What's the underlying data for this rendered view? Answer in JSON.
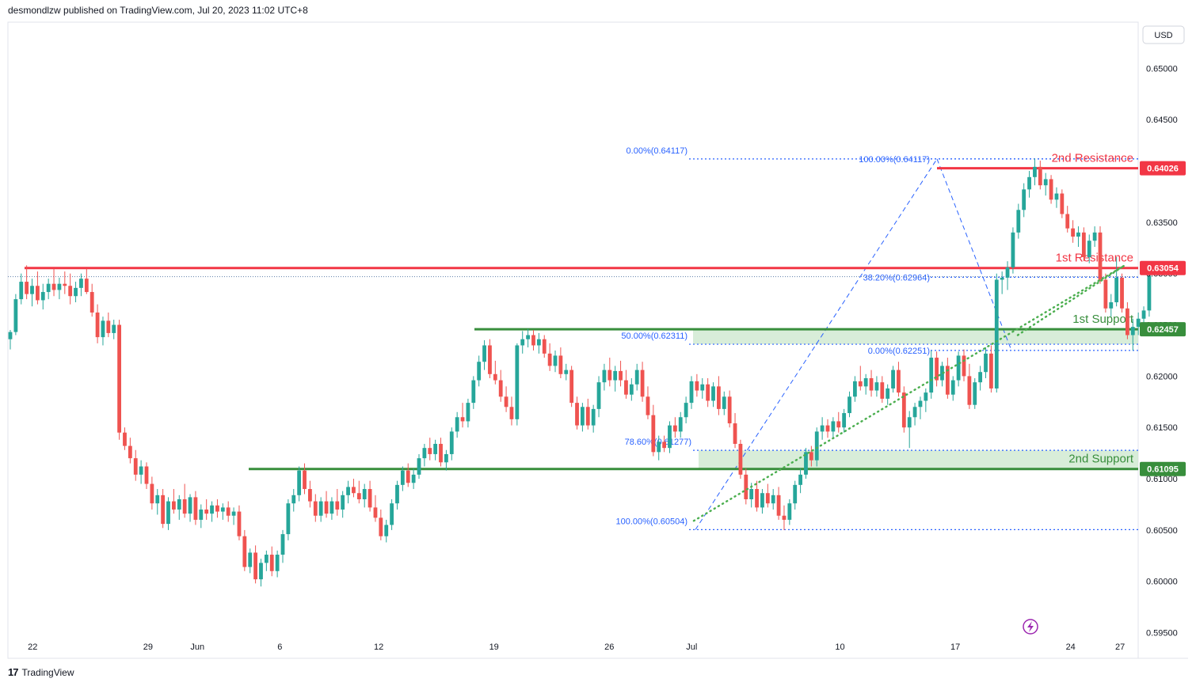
{
  "header": {
    "publisher_line": "desmondlzw published on TradingView.com, Jul 20, 2023 11:02 UTC+8"
  },
  "footer": {
    "brand": "TradingView"
  },
  "currency_badge": "USD",
  "colors": {
    "bull": "#26a69a",
    "bear": "#ef5350",
    "resistance": "#f23645",
    "support": "#388e3c",
    "fib": "#2962ff",
    "trend": "#4caf50",
    "zone": "#c8e6c9"
  },
  "icons": {
    "replay": "lightning-bolt-icon"
  },
  "chart_data": {
    "type": "candlestick",
    "y_axis": {
      "min": 0.5925,
      "max": 0.6545,
      "ticks": [
        "0.65000",
        "0.64500",
        "0.64000",
        "0.63500",
        "0.63000",
        "0.62500",
        "0.62000",
        "0.61500",
        "0.61000",
        "0.60500",
        "0.60000",
        "0.59500"
      ]
    },
    "x_axis": {
      "ticks": [
        {
          "label": "22",
          "day": 0
        },
        {
          "label": "29",
          "day": 7
        },
        {
          "label": "Jun",
          "day": 10
        },
        {
          "label": "6",
          "day": 15
        },
        {
          "label": "12",
          "day": 21
        },
        {
          "label": "19",
          "day": 28
        },
        {
          "label": "26",
          "day": 35
        },
        {
          "label": "Jul",
          "day": 40
        },
        {
          "label": "10",
          "day": 49
        },
        {
          "label": "17",
          "day": 56
        },
        {
          "label": "24",
          "day": 63
        },
        {
          "label": "27",
          "day": 66
        }
      ]
    },
    "levels": [
      {
        "name": "2nd Resistance",
        "value": 0.64026,
        "price": "0.64026",
        "kind": "resistance"
      },
      {
        "name": "1st Resistance",
        "value": 0.63054,
        "price": "0.63054",
        "kind": "resistance"
      },
      {
        "name": "1st Support",
        "value": 0.62457,
        "price": "0.62457",
        "kind": "support"
      },
      {
        "name": "2nd Support",
        "value": 0.61095,
        "price": "0.61095",
        "kind": "support"
      }
    ],
    "fib_left": [
      {
        "label": "0.00%(0.64117)",
        "value": 0.64117
      },
      {
        "label": "50.00%(0.62311)",
        "value": 0.62311
      },
      {
        "label": "78.60%(0.61277)",
        "value": 0.61277
      },
      {
        "label": "100.00%(0.60504)",
        "value": 0.60504
      }
    ],
    "fib_right": [
      {
        "label": "100.00%(0.64117)",
        "value": 0.64117
      },
      {
        "label": "38.20%(0.62964)",
        "value": 0.62964
      },
      {
        "label": "0.00%(0.62251)",
        "value": 0.62251
      }
    ],
    "candles": [
      [
        0.6236,
        0.6245,
        0.6226,
        0.6243
      ],
      [
        0.6243,
        0.628,
        0.624,
        0.6275
      ],
      [
        0.6275,
        0.63,
        0.627,
        0.6292
      ],
      [
        0.6292,
        0.6308,
        0.6275,
        0.628
      ],
      [
        0.628,
        0.6295,
        0.6268,
        0.6288
      ],
      [
        0.6288,
        0.6302,
        0.627,
        0.6274
      ],
      [
        0.6274,
        0.629,
        0.6265,
        0.6282
      ],
      [
        0.6282,
        0.6295,
        0.6275,
        0.629
      ],
      [
        0.629,
        0.6305,
        0.6278,
        0.6284
      ],
      [
        0.6284,
        0.6296,
        0.6275,
        0.629
      ],
      [
        0.629,
        0.6302,
        0.628,
        0.6288
      ],
      [
        0.6288,
        0.63,
        0.627,
        0.6278
      ],
      [
        0.6278,
        0.6292,
        0.6272,
        0.6286
      ],
      [
        0.6286,
        0.63,
        0.6278,
        0.6295
      ],
      [
        0.6295,
        0.6305,
        0.628,
        0.6282
      ],
      [
        0.6282,
        0.629,
        0.6258,
        0.6262
      ],
      [
        0.6262,
        0.627,
        0.6232,
        0.6238
      ],
      [
        0.6238,
        0.6258,
        0.623,
        0.6254
      ],
      [
        0.6254,
        0.6262,
        0.6238,
        0.6242
      ],
      [
        0.6242,
        0.6255,
        0.6236,
        0.625
      ],
      [
        0.625,
        0.6255,
        0.6138,
        0.6145
      ],
      [
        0.6145,
        0.615,
        0.6128,
        0.6132
      ],
      [
        0.6132,
        0.614,
        0.6115,
        0.612
      ],
      [
        0.612,
        0.6128,
        0.6098,
        0.6104
      ],
      [
        0.6104,
        0.6118,
        0.6095,
        0.6112
      ],
      [
        0.6112,
        0.6116,
        0.609,
        0.6095
      ],
      [
        0.6095,
        0.6102,
        0.607,
        0.6076
      ],
      [
        0.6076,
        0.609,
        0.6065,
        0.6084
      ],
      [
        0.6084,
        0.609,
        0.6052,
        0.6056
      ],
      [
        0.6056,
        0.6082,
        0.605,
        0.6078
      ],
      [
        0.6078,
        0.609,
        0.6066,
        0.607
      ],
      [
        0.607,
        0.6084,
        0.606,
        0.608
      ],
      [
        0.608,
        0.6095,
        0.6062,
        0.6066
      ],
      [
        0.6066,
        0.6085,
        0.6058,
        0.6082
      ],
      [
        0.6082,
        0.6088,
        0.6055,
        0.606
      ],
      [
        0.606,
        0.6075,
        0.6052,
        0.607
      ],
      [
        0.607,
        0.608,
        0.606,
        0.6066
      ],
      [
        0.6066,
        0.6078,
        0.6058,
        0.6074
      ],
      [
        0.6074,
        0.608,
        0.6062,
        0.6068
      ],
      [
        0.6068,
        0.6076,
        0.606,
        0.6072
      ],
      [
        0.6072,
        0.6078,
        0.6058,
        0.6064
      ],
      [
        0.6064,
        0.6072,
        0.6055,
        0.6068
      ],
      [
        0.6068,
        0.6074,
        0.604,
        0.6044
      ],
      [
        0.6044,
        0.605,
        0.601,
        0.6014
      ],
      [
        0.6014,
        0.6032,
        0.6008,
        0.6028
      ],
      [
        0.6028,
        0.6035,
        0.5998,
        0.6002
      ],
      [
        0.6002,
        0.6022,
        0.5995,
        0.6018
      ],
      [
        0.6018,
        0.603,
        0.601,
        0.6026
      ],
      [
        0.6026,
        0.6034,
        0.6005,
        0.601
      ],
      [
        0.601,
        0.603,
        0.6004,
        0.6026
      ],
      [
        0.6026,
        0.605,
        0.6018,
        0.6046
      ],
      [
        0.6046,
        0.608,
        0.604,
        0.6076
      ],
      [
        0.6076,
        0.609,
        0.6068,
        0.6084
      ],
      [
        0.6084,
        0.6112,
        0.6078,
        0.6108
      ],
      [
        0.6108,
        0.6115,
        0.6085,
        0.609
      ],
      [
        0.609,
        0.6098,
        0.6072,
        0.6078
      ],
      [
        0.6078,
        0.6085,
        0.6058,
        0.6064
      ],
      [
        0.6064,
        0.6082,
        0.6058,
        0.6078
      ],
      [
        0.6078,
        0.6088,
        0.6062,
        0.6066
      ],
      [
        0.6066,
        0.6082,
        0.606,
        0.6078
      ],
      [
        0.6078,
        0.609,
        0.6064,
        0.607
      ],
      [
        0.607,
        0.6088,
        0.6062,
        0.6084
      ],
      [
        0.6084,
        0.6098,
        0.6076,
        0.6092
      ],
      [
        0.6092,
        0.61,
        0.6082,
        0.6086
      ],
      [
        0.6086,
        0.6098,
        0.6076,
        0.608
      ],
      [
        0.608,
        0.6095,
        0.6072,
        0.609
      ],
      [
        0.609,
        0.6098,
        0.6068,
        0.6072
      ],
      [
        0.6072,
        0.6084,
        0.6058,
        0.6062
      ],
      [
        0.6062,
        0.607,
        0.604,
        0.6044
      ],
      [
        0.6044,
        0.606,
        0.6038,
        0.6055
      ],
      [
        0.6055,
        0.608,
        0.605,
        0.6076
      ],
      [
        0.6076,
        0.6098,
        0.607,
        0.6094
      ],
      [
        0.6094,
        0.6112,
        0.6088,
        0.6108
      ],
      [
        0.6108,
        0.6115,
        0.6092,
        0.6096
      ],
      [
        0.6096,
        0.611,
        0.609,
        0.6104
      ],
      [
        0.6104,
        0.6124,
        0.61,
        0.612
      ],
      [
        0.612,
        0.6134,
        0.6112,
        0.613
      ],
      [
        0.613,
        0.614,
        0.6118,
        0.6124
      ],
      [
        0.6124,
        0.6138,
        0.6118,
        0.6134
      ],
      [
        0.6134,
        0.614,
        0.6112,
        0.6116
      ],
      [
        0.6116,
        0.6128,
        0.6108,
        0.6124
      ],
      [
        0.6124,
        0.615,
        0.6118,
        0.6146
      ],
      [
        0.6146,
        0.6165,
        0.614,
        0.616
      ],
      [
        0.616,
        0.6174,
        0.615,
        0.6156
      ],
      [
        0.6156,
        0.6178,
        0.615,
        0.6174
      ],
      [
        0.6174,
        0.62,
        0.6168,
        0.6196
      ],
      [
        0.6196,
        0.622,
        0.619,
        0.6214
      ],
      [
        0.6214,
        0.6235,
        0.6206,
        0.623
      ],
      [
        0.623,
        0.6236,
        0.6198,
        0.6202
      ],
      [
        0.6202,
        0.6215,
        0.6192,
        0.6196
      ],
      [
        0.6196,
        0.6206,
        0.6175,
        0.618
      ],
      [
        0.618,
        0.619,
        0.6165,
        0.617
      ],
      [
        0.617,
        0.618,
        0.6152,
        0.6158
      ],
      [
        0.6158,
        0.6232,
        0.6152,
        0.623
      ],
      [
        0.623,
        0.6244,
        0.6222,
        0.6236
      ],
      [
        0.6236,
        0.6246,
        0.6228,
        0.624
      ],
      [
        0.624,
        0.6245,
        0.6225,
        0.623
      ],
      [
        0.623,
        0.6242,
        0.6222,
        0.6236
      ],
      [
        0.6236,
        0.624,
        0.6218,
        0.6222
      ],
      [
        0.6222,
        0.6232,
        0.6205,
        0.621
      ],
      [
        0.621,
        0.6225,
        0.6204,
        0.622
      ],
      [
        0.622,
        0.6228,
        0.6198,
        0.6202
      ],
      [
        0.6202,
        0.6212,
        0.6196,
        0.6206
      ],
      [
        0.6206,
        0.621,
        0.617,
        0.6174
      ],
      [
        0.6174,
        0.618,
        0.6148,
        0.6152
      ],
      [
        0.6152,
        0.6174,
        0.6146,
        0.617
      ],
      [
        0.617,
        0.6178,
        0.6148,
        0.6152
      ],
      [
        0.6152,
        0.6172,
        0.6145,
        0.6168
      ],
      [
        0.6168,
        0.62,
        0.616,
        0.6194
      ],
      [
        0.6194,
        0.6212,
        0.6186,
        0.6206
      ],
      [
        0.6206,
        0.6218,
        0.619,
        0.6196
      ],
      [
        0.6196,
        0.621,
        0.6185,
        0.6205
      ],
      [
        0.6205,
        0.6215,
        0.619,
        0.6196
      ],
      [
        0.6196,
        0.6206,
        0.6178,
        0.6182
      ],
      [
        0.6182,
        0.6198,
        0.6176,
        0.6192
      ],
      [
        0.6192,
        0.6212,
        0.6186,
        0.6206
      ],
      [
        0.6206,
        0.6214,
        0.6175,
        0.618
      ],
      [
        0.618,
        0.619,
        0.6158,
        0.6162
      ],
      [
        0.6162,
        0.6172,
        0.6122,
        0.6126
      ],
      [
        0.6126,
        0.6142,
        0.6118,
        0.6136
      ],
      [
        0.6136,
        0.6142,
        0.6126,
        0.613
      ],
      [
        0.613,
        0.6156,
        0.6125,
        0.6152
      ],
      [
        0.6152,
        0.616,
        0.614,
        0.6146
      ],
      [
        0.6146,
        0.6165,
        0.614,
        0.616
      ],
      [
        0.616,
        0.618,
        0.6154,
        0.6174
      ],
      [
        0.6174,
        0.62,
        0.6168,
        0.6195
      ],
      [
        0.6195,
        0.6202,
        0.618,
        0.6186
      ],
      [
        0.6186,
        0.6198,
        0.6178,
        0.6192
      ],
      [
        0.6192,
        0.6198,
        0.617,
        0.6176
      ],
      [
        0.6176,
        0.6194,
        0.617,
        0.619
      ],
      [
        0.619,
        0.62,
        0.6162,
        0.6168
      ],
      [
        0.6168,
        0.6185,
        0.6162,
        0.618
      ],
      [
        0.618,
        0.6186,
        0.615,
        0.6154
      ],
      [
        0.6154,
        0.6164,
        0.613,
        0.6134
      ],
      [
        0.6134,
        0.6138,
        0.61,
        0.6104
      ],
      [
        0.6104,
        0.611,
        0.6075,
        0.608
      ],
      [
        0.608,
        0.6096,
        0.6072,
        0.609
      ],
      [
        0.609,
        0.6098,
        0.6068,
        0.6072
      ],
      [
        0.6072,
        0.609,
        0.6066,
        0.6086
      ],
      [
        0.6086,
        0.6095,
        0.6072,
        0.6076
      ],
      [
        0.6076,
        0.609,
        0.607,
        0.6084
      ],
      [
        0.6084,
        0.6092,
        0.606,
        0.6064
      ],
      [
        0.6064,
        0.6074,
        0.605,
        0.606
      ],
      [
        0.606,
        0.608,
        0.6055,
        0.6076
      ],
      [
        0.6076,
        0.6098,
        0.607,
        0.6094
      ],
      [
        0.6094,
        0.611,
        0.6086,
        0.6104
      ],
      [
        0.6104,
        0.613,
        0.61,
        0.6126
      ],
      [
        0.6126,
        0.6132,
        0.6112,
        0.6118
      ],
      [
        0.6118,
        0.615,
        0.6112,
        0.6146
      ],
      [
        0.6146,
        0.616,
        0.6138,
        0.6152
      ],
      [
        0.6152,
        0.6158,
        0.614,
        0.6146
      ],
      [
        0.6146,
        0.616,
        0.614,
        0.6156
      ],
      [
        0.6156,
        0.6165,
        0.6145,
        0.615
      ],
      [
        0.615,
        0.6168,
        0.6145,
        0.6164
      ],
      [
        0.6164,
        0.6185,
        0.616,
        0.618
      ],
      [
        0.618,
        0.62,
        0.6175,
        0.6195
      ],
      [
        0.6195,
        0.621,
        0.6186,
        0.619
      ],
      [
        0.619,
        0.6202,
        0.6182,
        0.6198
      ],
      [
        0.6198,
        0.6206,
        0.618,
        0.6186
      ],
      [
        0.6186,
        0.62,
        0.618,
        0.6194
      ],
      [
        0.6194,
        0.62,
        0.6174,
        0.6178
      ],
      [
        0.6178,
        0.6192,
        0.6172,
        0.6188
      ],
      [
        0.6188,
        0.621,
        0.6184,
        0.6206
      ],
      [
        0.6206,
        0.6214,
        0.618,
        0.6184
      ],
      [
        0.6184,
        0.619,
        0.6145,
        0.615
      ],
      [
        0.615,
        0.6166,
        0.613,
        0.616
      ],
      [
        0.616,
        0.6174,
        0.6152,
        0.617
      ],
      [
        0.617,
        0.618,
        0.6158,
        0.6176
      ],
      [
        0.6176,
        0.6188,
        0.6165,
        0.6184
      ],
      [
        0.6184,
        0.6225,
        0.6178,
        0.6218
      ],
      [
        0.6218,
        0.6224,
        0.619,
        0.6196
      ],
      [
        0.6196,
        0.6214,
        0.619,
        0.621
      ],
      [
        0.621,
        0.6218,
        0.6178,
        0.6182
      ],
      [
        0.6182,
        0.62,
        0.6176,
        0.6196
      ],
      [
        0.6196,
        0.6224,
        0.619,
        0.622
      ],
      [
        0.622,
        0.6226,
        0.6195,
        0.62
      ],
      [
        0.62,
        0.6212,
        0.6168,
        0.6172
      ],
      [
        0.6172,
        0.6198,
        0.6168,
        0.6194
      ],
      [
        0.6194,
        0.621,
        0.6186,
        0.6204
      ],
      [
        0.6204,
        0.6228,
        0.6198,
        0.6222
      ],
      [
        0.6222,
        0.623,
        0.6184,
        0.6188
      ],
      [
        0.6188,
        0.63,
        0.6184,
        0.6294
      ],
      [
        0.6294,
        0.6302,
        0.628,
        0.6296
      ],
      [
        0.6296,
        0.6312,
        0.6284,
        0.6306
      ],
      [
        0.6306,
        0.6345,
        0.63,
        0.634
      ],
      [
        0.634,
        0.6368,
        0.6334,
        0.6362
      ],
      [
        0.6362,
        0.6388,
        0.6355,
        0.6382
      ],
      [
        0.6382,
        0.64,
        0.6374,
        0.6394
      ],
      [
        0.6394,
        0.6412,
        0.6386,
        0.6404
      ],
      [
        0.6404,
        0.641,
        0.6382,
        0.6386
      ],
      [
        0.6386,
        0.6398,
        0.6376,
        0.6392
      ],
      [
        0.6392,
        0.6396,
        0.6368,
        0.6372
      ],
      [
        0.6372,
        0.6384,
        0.6364,
        0.6378
      ],
      [
        0.6378,
        0.6382,
        0.6354,
        0.6358
      ],
      [
        0.6358,
        0.6366,
        0.634,
        0.6344
      ],
      [
        0.6344,
        0.6352,
        0.633,
        0.6336
      ],
      [
        0.6336,
        0.6346,
        0.6326,
        0.634
      ],
      [
        0.634,
        0.6345,
        0.6312,
        0.6316
      ],
      [
        0.6316,
        0.6338,
        0.631,
        0.6332
      ],
      [
        0.6332,
        0.6346,
        0.6326,
        0.634
      ],
      [
        0.634,
        0.6346,
        0.629,
        0.6294
      ],
      [
        0.6294,
        0.63,
        0.6262,
        0.6266
      ],
      [
        0.6266,
        0.628,
        0.6258,
        0.6272
      ],
      [
        0.6272,
        0.6316,
        0.6268,
        0.6296
      ],
      [
        0.6296,
        0.63,
        0.6262,
        0.6266
      ],
      [
        0.6266,
        0.6272,
        0.6236,
        0.624
      ],
      [
        0.624,
        0.6256,
        0.6225,
        0.6248
      ],
      [
        0.6248,
        0.6262,
        0.624,
        0.6256
      ],
      [
        0.6256,
        0.6268,
        0.625,
        0.6264
      ],
      [
        0.6264,
        0.6305,
        0.6258,
        0.6298
      ]
    ]
  }
}
